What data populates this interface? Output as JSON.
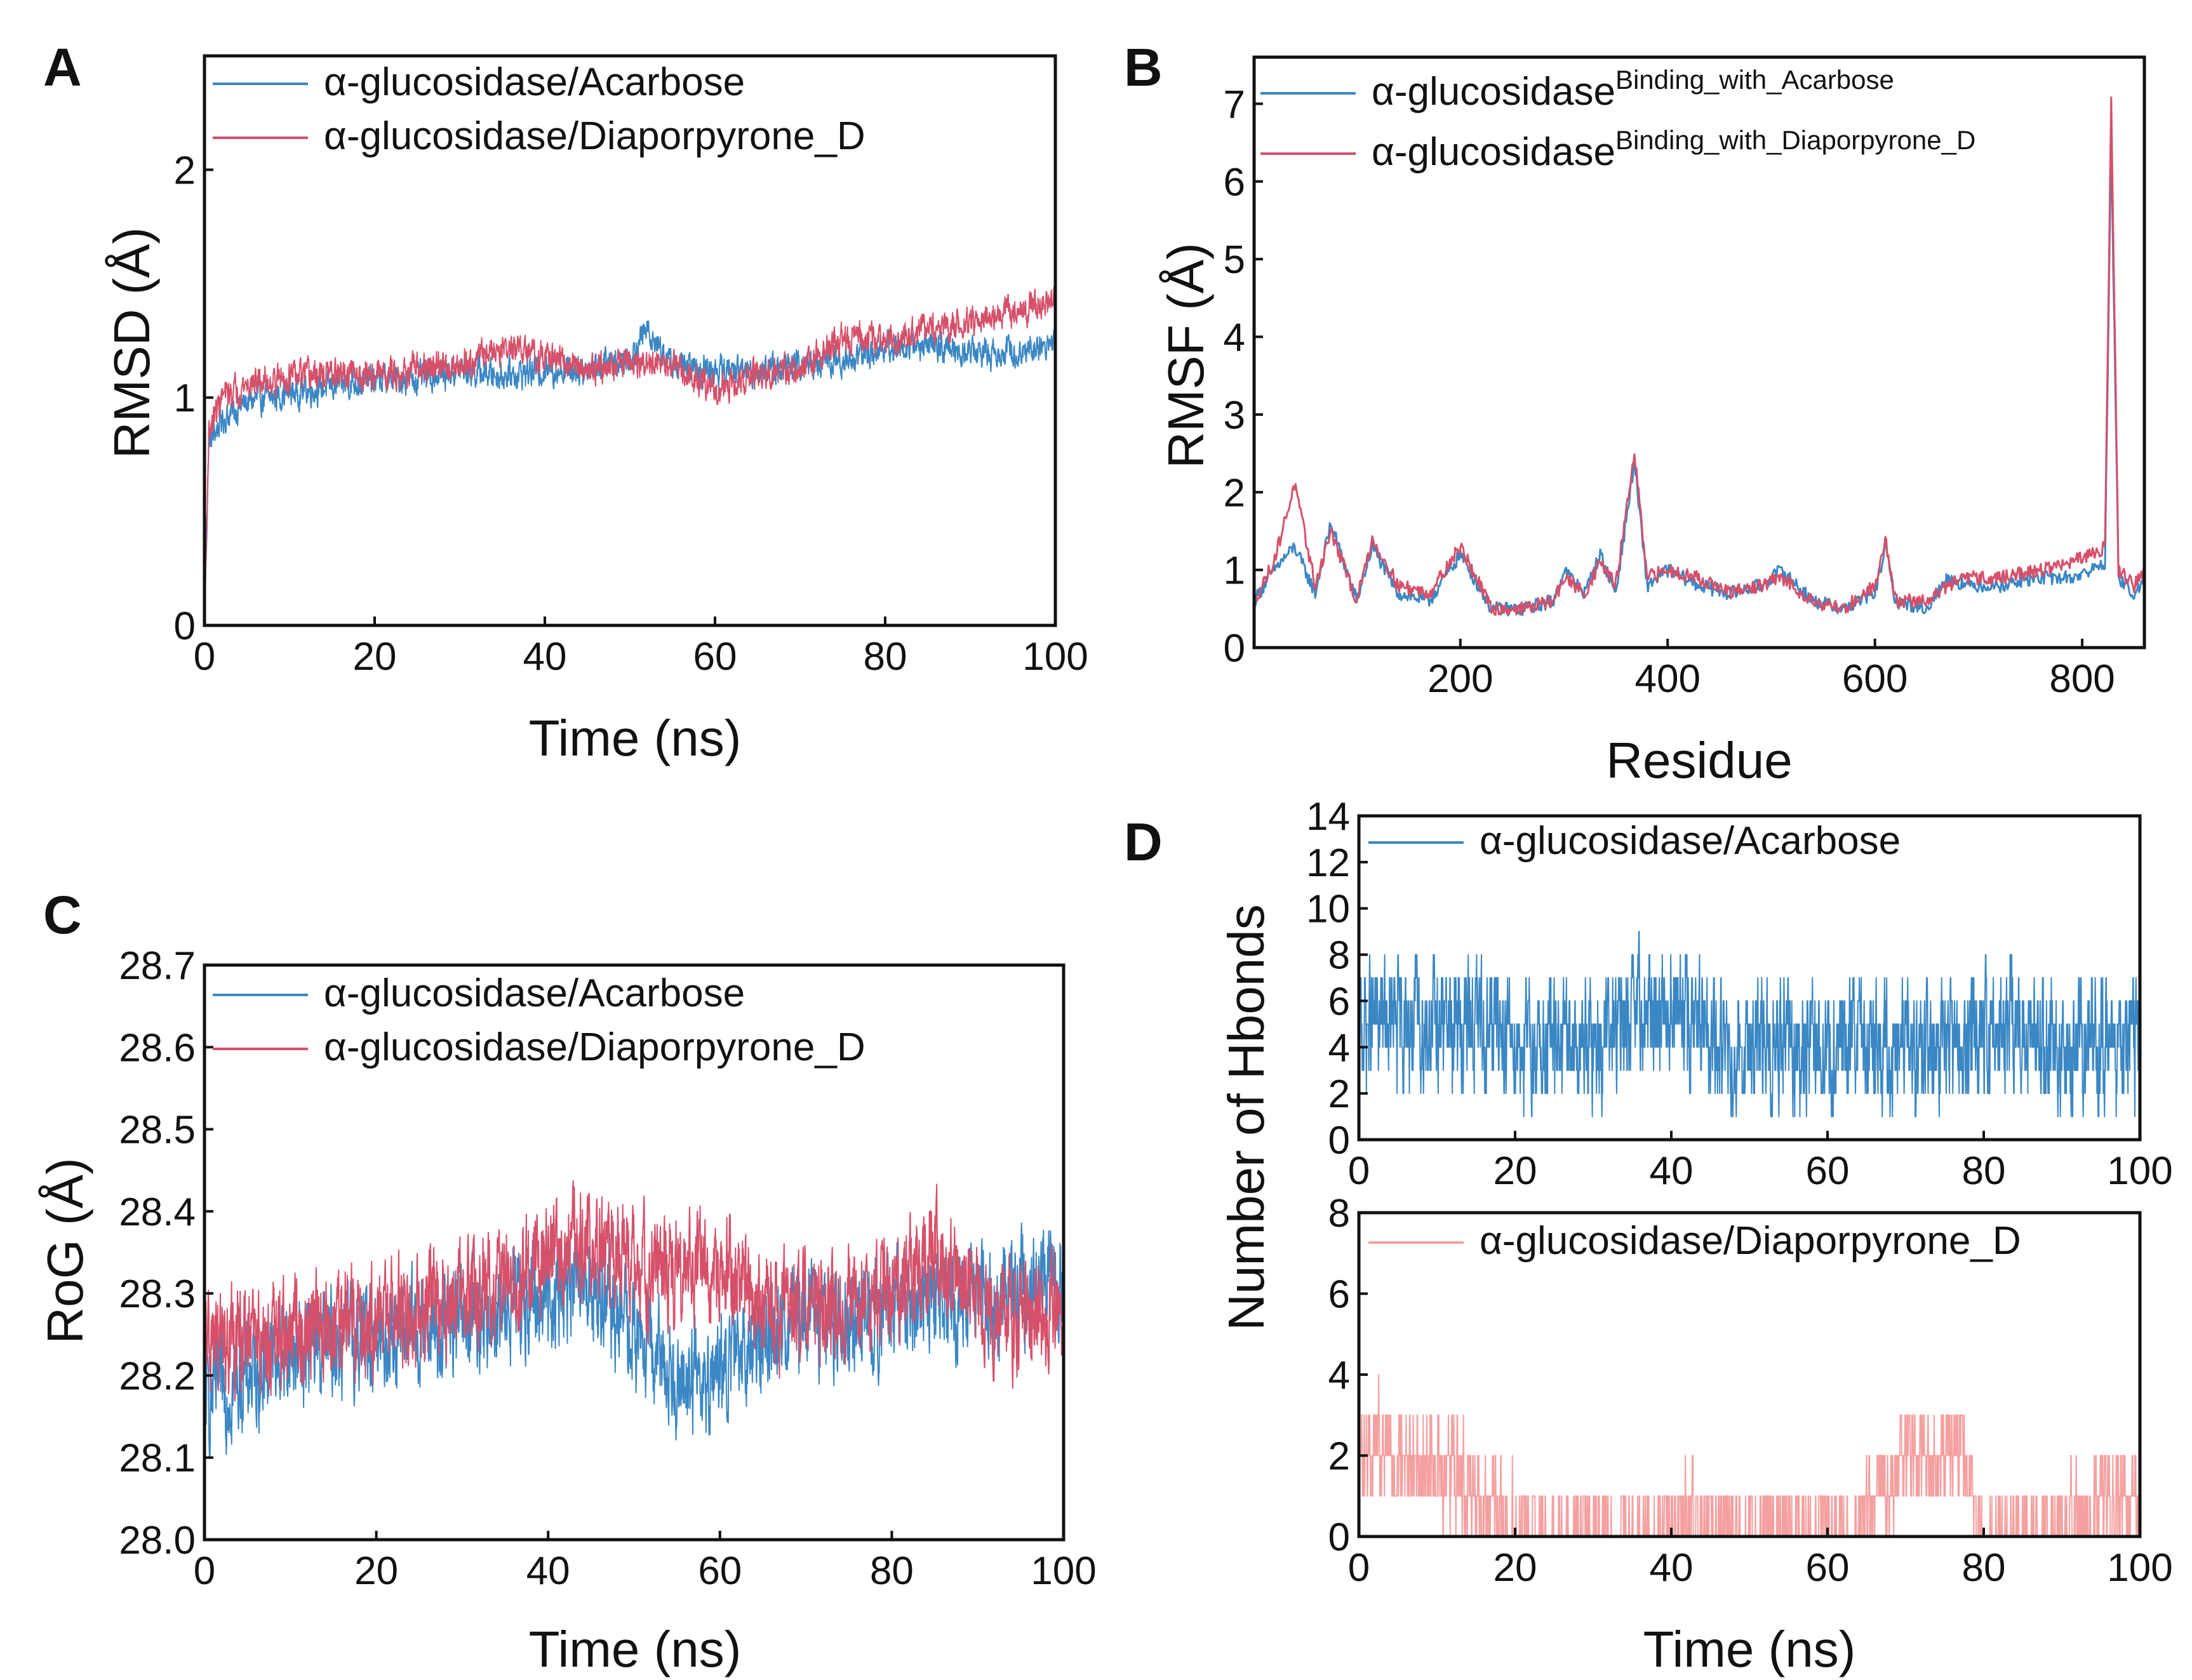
{
  "chart_data": [
    {
      "id": "A",
      "panel_label": "A",
      "type": "line",
      "xlabel": "Time (ns)",
      "ylabel": "RMSD (Å)",
      "xlim": [
        0,
        100
      ],
      "ylim": [
        0,
        2.5
      ],
      "xticks": [
        0,
        20,
        40,
        60,
        80,
        100
      ],
      "yticks": [
        0,
        1,
        2
      ],
      "legend_position": "top-left",
      "colors": [
        "#3a87c4",
        "#d6506a"
      ],
      "series": [
        {
          "name": "α-glucosidase/Acarbose",
          "color": "#3a87c4",
          "x": [
            0,
            0.5,
            2,
            5,
            10,
            15,
            20,
            25,
            30,
            35,
            40,
            45,
            50,
            52,
            55,
            60,
            65,
            70,
            75,
            80,
            85,
            90,
            95,
            100
          ],
          "y": [
            0,
            0.8,
            0.9,
            0.98,
            1.02,
            1.05,
            1.08,
            1.08,
            1.12,
            1.1,
            1.12,
            1.13,
            1.18,
            1.3,
            1.14,
            1.12,
            1.12,
            1.14,
            1.16,
            1.22,
            1.23,
            1.2,
            1.2,
            1.24
          ],
          "noise": 0.05
        },
        {
          "name": "α-glucosidase/Diaporpyrone_D",
          "color": "#d6506a",
          "x": [
            0,
            0.5,
            2,
            5,
            10,
            15,
            20,
            25,
            30,
            35,
            40,
            45,
            50,
            55,
            60,
            65,
            70,
            75,
            80,
            85,
            90,
            95,
            100
          ],
          "y": [
            0,
            0.85,
            1.0,
            1.06,
            1.09,
            1.1,
            1.1,
            1.12,
            1.15,
            1.22,
            1.18,
            1.13,
            1.15,
            1.13,
            1.03,
            1.1,
            1.12,
            1.27,
            1.25,
            1.3,
            1.33,
            1.38,
            1.43
          ],
          "noise": 0.05
        }
      ]
    },
    {
      "id": "B",
      "panel_label": "B",
      "type": "line",
      "xlabel": "Residue",
      "ylabel": "RMSF (Å)",
      "xlim": [
        1,
        860
      ],
      "ylim": [
        0,
        7.6
      ],
      "xticks": [
        200,
        400,
        600,
        800
      ],
      "yticks": [
        0,
        1,
        2,
        3,
        4,
        5,
        6,
        7
      ],
      "legend_position": "top-left",
      "colors": [
        "#3a87c4",
        "#d6506a"
      ],
      "series": [
        {
          "name": "α-glucosidase",
          "name_superscript": "Binding_with_Acarbose",
          "color": "#3a87c4",
          "x": [
            1,
            20,
            40,
            60,
            75,
            100,
            115,
            140,
            170,
            200,
            230,
            260,
            290,
            300,
            320,
            335,
            350,
            368,
            380,
            400,
            430,
            460,
            490,
            510,
            540,
            570,
            600,
            610,
            620,
            650,
            670,
            690,
            720,
            760,
            790,
            810,
            822,
            828,
            835,
            850,
            860
          ],
          "y": [
            0.6,
            1.0,
            1.3,
            0.7,
            1.6,
            0.6,
            1.3,
            0.7,
            0.6,
            1.2,
            0.5,
            0.5,
            0.6,
            1.0,
            0.7,
            1.2,
            0.7,
            2.4,
            0.8,
            1.0,
            0.8,
            0.7,
            0.8,
            1.0,
            0.6,
            0.5,
            0.7,
            1.3,
            0.6,
            0.5,
            0.9,
            0.8,
            0.8,
            0.9,
            0.9,
            1.0,
            1.1,
            6.5,
            0.9,
            0.7,
            0.8
          ]
        },
        {
          "name": "α-glucosidase",
          "name_superscript": "Binding_with_Diaporpyrone_D",
          "color": "#d6506a",
          "x": [
            1,
            20,
            40,
            60,
            75,
            100,
            115,
            140,
            170,
            200,
            230,
            260,
            290,
            300,
            320,
            335,
            350,
            368,
            380,
            400,
            430,
            460,
            490,
            510,
            540,
            570,
            600,
            610,
            620,
            650,
            670,
            690,
            720,
            760,
            790,
            810,
            822,
            828,
            835,
            850,
            860
          ],
          "y": [
            0.6,
            1.1,
            2.1,
            0.8,
            1.5,
            0.6,
            1.4,
            0.8,
            0.7,
            1.3,
            0.5,
            0.5,
            0.6,
            0.9,
            0.7,
            1.1,
            0.8,
            2.5,
            0.9,
            1.0,
            0.9,
            0.7,
            0.8,
            0.9,
            0.6,
            0.5,
            0.8,
            1.4,
            0.6,
            0.6,
            0.8,
            0.9,
            0.9,
            1.0,
            1.1,
            1.2,
            1.3,
            7.1,
            1.0,
            0.8,
            1.0
          ]
        }
      ]
    },
    {
      "id": "C",
      "panel_label": "C",
      "type": "line",
      "xlabel": "Time (ns)",
      "ylabel": "RoG (Å)",
      "xlim": [
        0,
        100
      ],
      "ylim": [
        28.0,
        28.7
      ],
      "xticks": [
        0,
        20,
        40,
        60,
        80,
        100
      ],
      "yticks": [
        28.0,
        28.1,
        28.2,
        28.3,
        28.4,
        28.5,
        28.6,
        28.7
      ],
      "legend_position": "top-left",
      "colors": [
        "#3a87c4",
        "#d6506a"
      ],
      "series": [
        {
          "name": "α-glucosidase/Acarbose",
          "color": "#3a87c4",
          "x": [
            0,
            5,
            10,
            20,
            30,
            40,
            45,
            50,
            55,
            60,
            65,
            70,
            80,
            85,
            90,
            95,
            100
          ],
          "y": [
            28.17,
            28.2,
            28.23,
            28.25,
            28.26,
            28.3,
            28.31,
            28.25,
            28.2,
            28.2,
            28.25,
            28.27,
            28.28,
            28.3,
            28.28,
            28.3,
            28.32
          ],
          "noise": 0.05
        },
        {
          "name": "α-glucosidase/Diaporpyrone_D",
          "color": "#d6506a",
          "x": [
            0,
            5,
            10,
            20,
            30,
            40,
            45,
            50,
            55,
            60,
            65,
            70,
            80,
            85,
            90,
            95,
            100
          ],
          "y": [
            28.24,
            28.24,
            28.25,
            28.27,
            28.3,
            28.34,
            28.36,
            28.33,
            28.32,
            28.33,
            28.28,
            28.28,
            28.3,
            28.35,
            28.28,
            28.27,
            28.29
          ],
          "noise": 0.05
        }
      ]
    },
    {
      "id": "D-top",
      "panel_label": "D",
      "type": "line",
      "xlabel": "",
      "ylabel": "Number of Hbonds",
      "xlim": [
        0,
        100
      ],
      "ylim": [
        0,
        14
      ],
      "xticks": [
        0,
        20,
        40,
        60,
        80,
        100
      ],
      "yticks": [
        0,
        2,
        4,
        6,
        8,
        10,
        12,
        14
      ],
      "legend_position": "top-left",
      "colors": [
        "#3a87c4"
      ],
      "series": [
        {
          "name": "α-glucosidase/Acarbose",
          "color": "#3a87c4",
          "x": [
            0,
            15,
            18,
            22,
            30,
            35,
            40,
            45,
            60,
            78,
            80,
            82,
            90,
            100
          ],
          "y": [
            5,
            5,
            5,
            4,
            4,
            5,
            6,
            4,
            4,
            4,
            5,
            5,
            4,
            4
          ],
          "noise": 2,
          "integer": true
        }
      ]
    },
    {
      "id": "D-bottom",
      "panel_label": "",
      "type": "line",
      "xlabel": "Time (ns)",
      "ylabel": "",
      "xlim": [
        0,
        100
      ],
      "ylim": [
        0,
        8
      ],
      "xticks": [
        0,
        20,
        40,
        60,
        80,
        100
      ],
      "yticks": [
        0,
        2,
        4,
        6,
        8
      ],
      "legend_position": "top-left",
      "colors": [
        "#f5a0a0"
      ],
      "series": [
        {
          "name": "α-glucosidase/Diaporpyrone_D",
          "color": "#f5a0a0",
          "x": [
            0,
            7,
            14,
            18,
            25,
            40,
            41,
            55,
            64,
            66,
            70,
            78,
            79,
            85,
            90,
            93,
            100
          ],
          "y": [
            2,
            2,
            1.5,
            0.5,
            0,
            0,
            0.5,
            0,
            0,
            1,
            2,
            2,
            0,
            0,
            0,
            0.5,
            1
          ],
          "noise": 0.9,
          "integer": true
        }
      ]
    }
  ]
}
